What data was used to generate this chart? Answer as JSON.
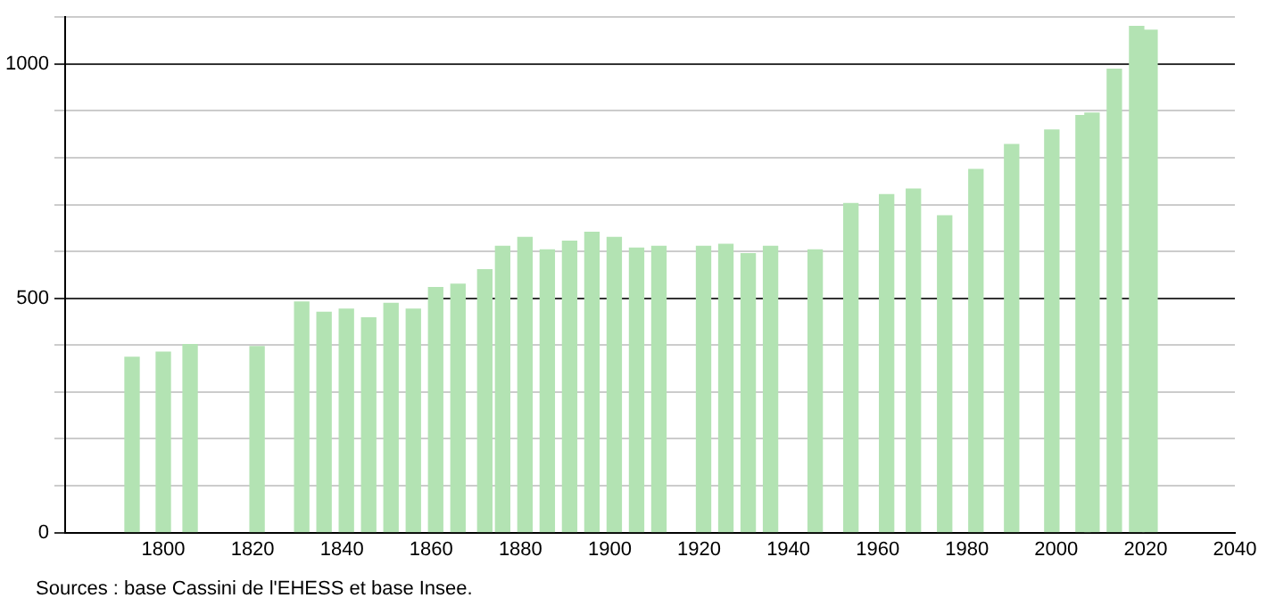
{
  "chart_data": {
    "type": "bar",
    "x": [
      1793,
      1800,
      1806,
      1821,
      1831,
      1836,
      1841,
      1846,
      1851,
      1856,
      1861,
      1866,
      1872,
      1876,
      1881,
      1886,
      1891,
      1896,
      1901,
      1906,
      1911,
      1921,
      1926,
      1931,
      1936,
      1946,
      1954,
      1962,
      1968,
      1975,
      1982,
      1990,
      1999,
      2006,
      2008,
      2013,
      2018,
      2021
    ],
    "values": [
      374,
      385,
      401,
      397,
      492,
      470,
      477,
      458,
      489,
      477,
      523,
      530,
      561,
      611,
      630,
      603,
      622,
      641,
      630,
      607,
      611,
      611,
      615,
      595,
      611,
      603,
      702,
      721,
      733,
      676,
      775,
      828,
      859,
      890,
      895,
      989,
      1080,
      1072
    ],
    "color": "#b3e3b3",
    "xlim": [
      1778,
      2040
    ],
    "xticks": [
      1800,
      1820,
      1840,
      1860,
      1880,
      1900,
      1920,
      1940,
      1960,
      1980,
      2000,
      2020,
      2040
    ],
    "ylim": [
      0,
      1100
    ],
    "yticks": [
      0,
      {
        "value": 100,
        "label": null
      },
      {
        "value": 200,
        "label": null
      },
      {
        "value": 300,
        "label": null
      },
      {
        "value": 400,
        "label": null
      },
      500,
      {
        "value": 600,
        "label": null
      },
      {
        "value": 700,
        "label": null
      },
      {
        "value": 800,
        "label": null
      },
      {
        "value": 900,
        "label": null
      },
      1000,
      {
        "value": 1100,
        "label": null
      }
    ],
    "grid": "y",
    "annotations": [
      "Sources : base Cassini de l'EHESS et base Insee."
    ]
  }
}
